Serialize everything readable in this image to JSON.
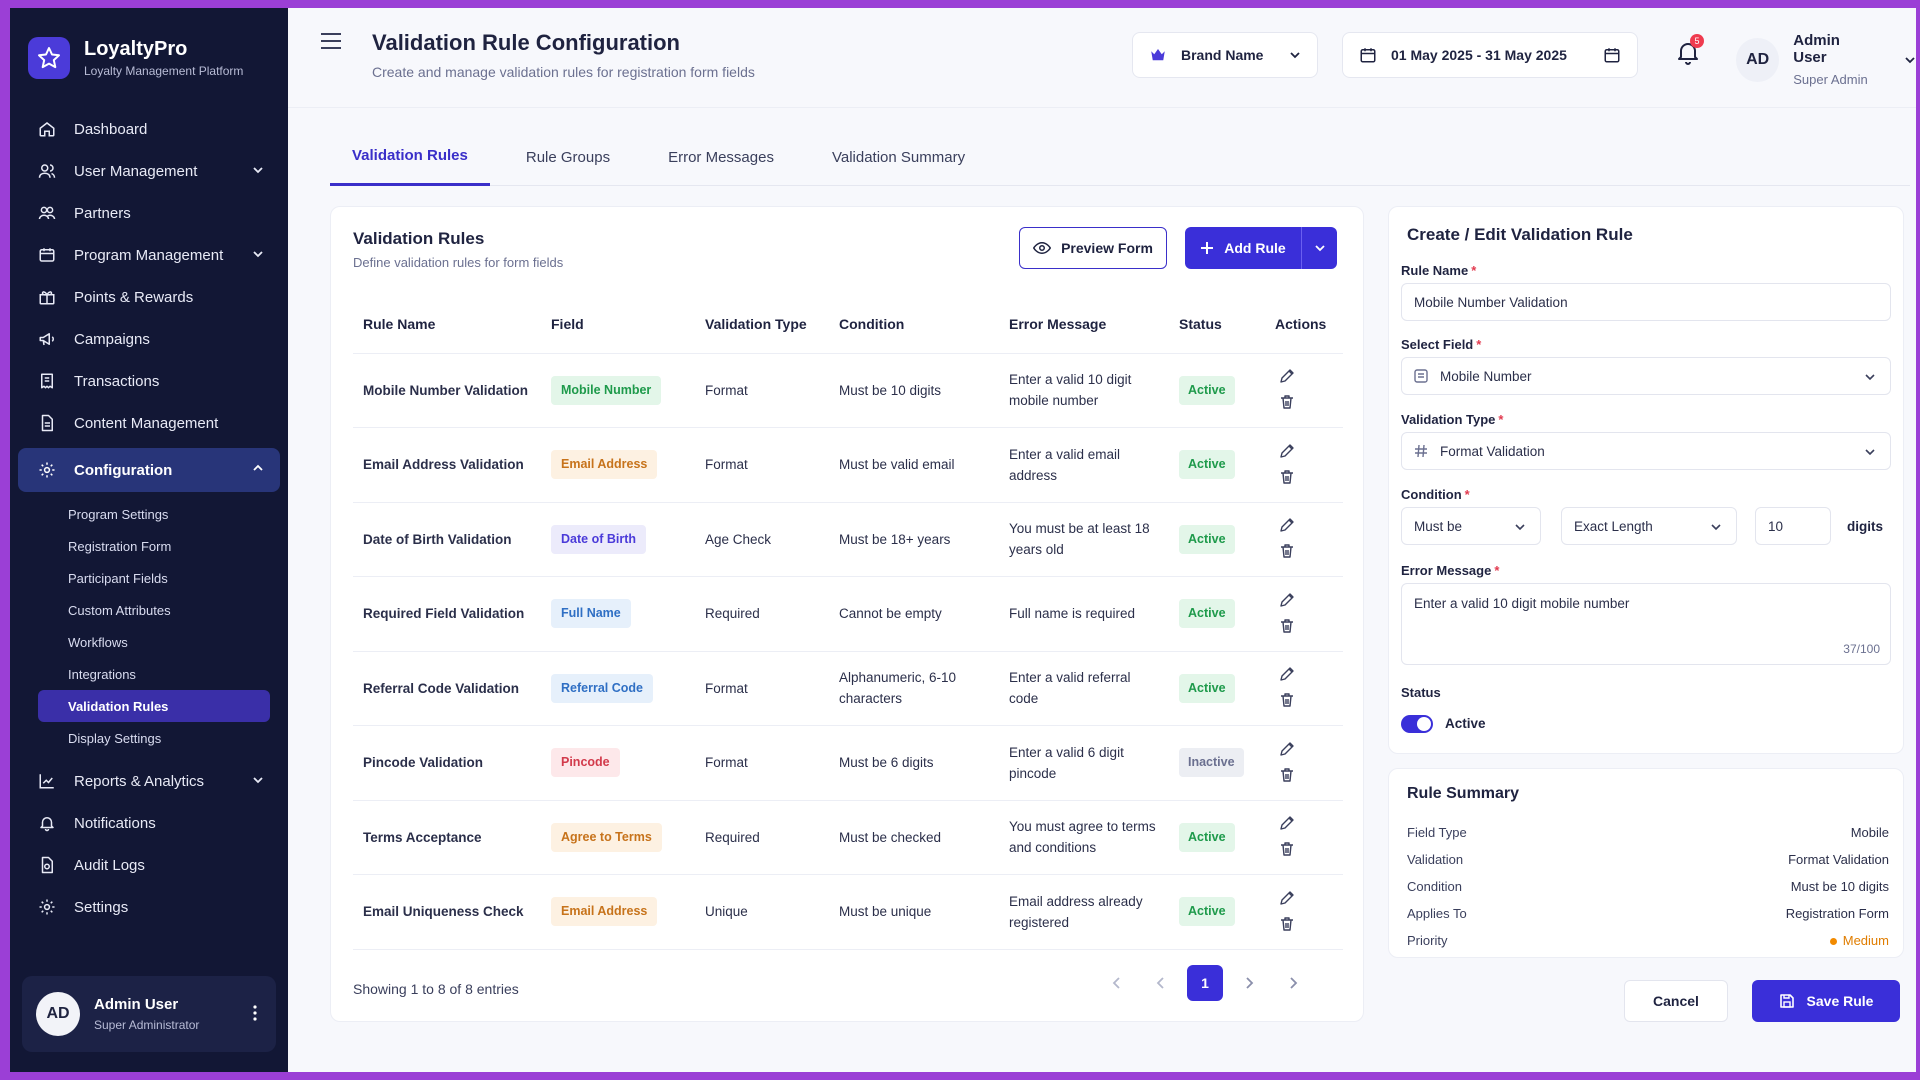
{
  "brand": {
    "name": "LoyaltyPro",
    "subtitle": "Loyalty Management Platform"
  },
  "sidebar": {
    "items": [
      {
        "label": "Dashboard",
        "icon": "home-icon"
      },
      {
        "label": "User Management",
        "icon": "users-icon"
      },
      {
        "label": "Partners",
        "icon": "partners-icon"
      },
      {
        "label": "Program Management",
        "icon": "program-icon"
      },
      {
        "label": "Points & Rewards",
        "icon": "gift-icon"
      },
      {
        "label": "Campaigns",
        "icon": "megaphone-icon"
      },
      {
        "label": "Transactions",
        "icon": "receipt-icon"
      },
      {
        "label": "Content Management",
        "icon": "document-icon"
      },
      {
        "label": "Configuration",
        "icon": "gear-icon"
      },
      {
        "label": "Reports & Analytics",
        "icon": "chart-icon"
      },
      {
        "label": "Notifications",
        "icon": "bell-icon"
      },
      {
        "label": "Audit Logs",
        "icon": "audit-icon"
      },
      {
        "label": "Settings",
        "icon": "gear-icon"
      }
    ],
    "sub_items": [
      "Program Settings",
      "Registration Form",
      "Participant Fields",
      "Custom Attributes",
      "Workflows",
      "Integrations",
      "Validation Rules",
      "Display Settings"
    ],
    "user": {
      "initials": "AD",
      "name": "Admin User",
      "role": "Super Administrator"
    }
  },
  "header": {
    "title": "Validation Rule Configuration",
    "subtitle": "Create and manage validation rules for registration form fields",
    "brand_select": "Brand Name",
    "date_range": "01 May 2025 - 31 May 2025",
    "notification_count": "5",
    "user": {
      "initials": "AD",
      "name": "Admin User",
      "role": "Super Admin"
    }
  },
  "tabs": [
    "Validation Rules",
    "Rule Groups",
    "Error Messages",
    "Validation Summary"
  ],
  "rules_card": {
    "title": "Validation Rules",
    "subtitle": "Define validation rules for form fields",
    "preview_label": "Preview Form",
    "add_label": "Add Rule",
    "columns": [
      "Rule Name",
      "Field",
      "Validation Type",
      "Condition",
      "Error Message",
      "Status",
      "Actions"
    ],
    "rows": [
      {
        "name": "Mobile Number Validation",
        "field": "Mobile Number",
        "field_color": "green",
        "type": "Format",
        "condition": "Must be 10 digits",
        "error": "Enter a valid 10 digit mobile number",
        "status": "Active"
      },
      {
        "name": "Email Address Validation",
        "field": "Email Address",
        "field_color": "orange",
        "type": "Format",
        "condition": "Must be valid email",
        "error": "Enter a valid email address",
        "status": "Active"
      },
      {
        "name": "Date of Birth Validation",
        "field": "Date of Birth",
        "field_color": "purple",
        "type": "Age Check",
        "condition": "Must be 18+ years",
        "error": "You must be at least 18 years old",
        "status": "Active"
      },
      {
        "name": "Required Field Validation",
        "field": "Full Name",
        "field_color": "blue",
        "type": "Required",
        "condition": "Cannot be empty",
        "error": "Full name is required",
        "status": "Active"
      },
      {
        "name": "Referral Code Validation",
        "field": "Referral Code",
        "field_color": "blue",
        "type": "Format",
        "condition": "Alphanumeric, 6-10 characters",
        "error": "Enter a valid referral code",
        "status": "Active"
      },
      {
        "name": "Pincode Validation",
        "field": "Pincode",
        "field_color": "red",
        "type": "Format",
        "condition": "Must be 6 digits",
        "error": "Enter a valid 6 digit pincode",
        "status": "Inactive"
      },
      {
        "name": "Terms Acceptance",
        "field": "Agree to Terms",
        "field_color": "orange",
        "type": "Required",
        "condition": "Must be checked",
        "error": "You must agree to terms and conditions",
        "status": "Active"
      },
      {
        "name": "Email Uniqueness Check",
        "field": "Email Address",
        "field_color": "orange",
        "type": "Unique",
        "condition": "Must be unique",
        "error": "Email address already registered",
        "status": "Active"
      }
    ],
    "footer": "Showing 1 to 8 of 8 entries",
    "current_page": "1"
  },
  "form": {
    "title": "Create / Edit Validation Rule",
    "rule_name_label": "Rule Name",
    "rule_name_value": "Mobile Number Validation",
    "field_label": "Select Field",
    "field_value": "Mobile Number",
    "type_label": "Validation Type",
    "type_value": "Format Validation",
    "condition_label": "Condition",
    "condition_op": "Must be",
    "condition_kind": "Exact Length",
    "condition_value": "10",
    "condition_unit": "digits",
    "error_label": "Error Message",
    "error_value": "Enter a valid 10 digit mobile number",
    "error_count": "37/100",
    "status_label": "Status",
    "status_value": "Active"
  },
  "summary": {
    "title": "Rule Summary",
    "rows": [
      {
        "label": "Field Type",
        "value": "Mobile"
      },
      {
        "label": "Validation",
        "value": "Format Validation"
      },
      {
        "label": "Condition",
        "value": "Must be 10 digits"
      },
      {
        "label": "Applies To",
        "value": "Registration Form"
      },
      {
        "label": "Priority",
        "value": "Medium"
      }
    ]
  },
  "actions": {
    "cancel": "Cancel",
    "save": "Save Rule"
  },
  "colors": {
    "accent": "#3a2fd9",
    "sidebar": "#121735",
    "badge_green_bg": "#e3f6e9",
    "badge_green_fg": "#1e9a4b",
    "badge_orange_bg": "#fdf1e2",
    "badge_orange_fg": "#c7731b",
    "badge_purple_bg": "#ecebfb",
    "badge_purple_fg": "#4b3bd9",
    "badge_blue_bg": "#e6f0fb",
    "badge_blue_fg": "#2f6fc4",
    "badge_red_bg": "#fde8ea",
    "badge_red_fg": "#d23a4b"
  }
}
